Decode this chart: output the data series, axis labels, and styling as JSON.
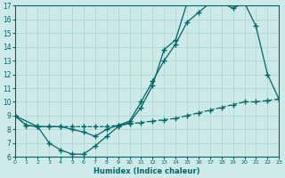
{
  "xlabel": "Humidex (Indice chaleur)",
  "xlim": [
    0,
    23
  ],
  "ylim": [
    6,
    17
  ],
  "xticks": [
    0,
    1,
    2,
    3,
    4,
    5,
    6,
    7,
    8,
    9,
    10,
    11,
    12,
    13,
    14,
    15,
    16,
    17,
    18,
    19,
    20,
    21,
    22,
    23
  ],
  "yticks": [
    6,
    7,
    8,
    9,
    10,
    11,
    12,
    13,
    14,
    15,
    16,
    17
  ],
  "bg_color": "#ceeae8",
  "line_color": "#006666",
  "grid_color": "#aad4d0",
  "line1_x": [
    0,
    1,
    2,
    3,
    4,
    5,
    6,
    7,
    8,
    9,
    10,
    11,
    12,
    13,
    14,
    15,
    16,
    17,
    18,
    19,
    20,
    21,
    22,
    23
  ],
  "line1_y": [
    9.0,
    8.3,
    8.2,
    7.0,
    6.5,
    6.2,
    6.2,
    6.8,
    7.5,
    8.2,
    8.5,
    9.6,
    11.2,
    13.8,
    14.5,
    17.2,
    17.2,
    17.2,
    17.2,
    16.8,
    17.2,
    15.5,
    12.0,
    10.2
  ],
  "line2_x": [
    0,
    2,
    3,
    4,
    5,
    6,
    7,
    8,
    9,
    10,
    11,
    12,
    13,
    14,
    15,
    16,
    17,
    18,
    19,
    20
  ],
  "line2_y": [
    9.0,
    8.2,
    8.2,
    8.2,
    8.0,
    7.8,
    7.5,
    8.0,
    8.3,
    8.6,
    10.0,
    11.5,
    13.0,
    14.2,
    15.8,
    16.5,
    17.2,
    17.2,
    17.0,
    17.2
  ],
  "line3_x": [
    0,
    1,
    2,
    3,
    4,
    5,
    6,
    7,
    8,
    9,
    10,
    11,
    12,
    13,
    14,
    15,
    16,
    17,
    18,
    19,
    20,
    21,
    22,
    23
  ],
  "line3_y": [
    9.0,
    8.3,
    8.2,
    8.2,
    8.2,
    8.2,
    8.2,
    8.2,
    8.2,
    8.3,
    8.4,
    8.5,
    8.6,
    8.7,
    8.8,
    9.0,
    9.2,
    9.4,
    9.6,
    9.8,
    10.0,
    10.0,
    10.1,
    10.2
  ]
}
